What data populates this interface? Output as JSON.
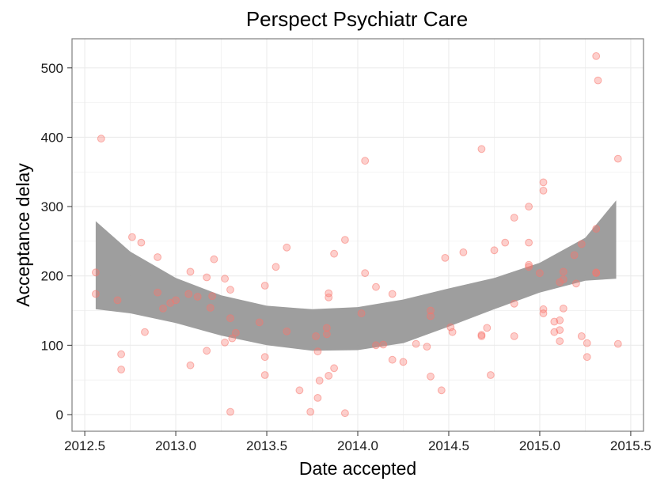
{
  "chart_data": {
    "type": "scatter",
    "title": "Perspect Psychiatr Care",
    "xlabel": "Date accepted",
    "ylabel": "Acceptance delay",
    "xlim": [
      2012.43,
      2015.57
    ],
    "ylim": [
      -24,
      542
    ],
    "x_ticks": [
      2012.5,
      2013.0,
      2013.5,
      2014.0,
      2014.5,
      2015.0,
      2015.5
    ],
    "x_tick_labels": [
      "2012.5",
      "2013.0",
      "2013.5",
      "2014.0",
      "2014.5",
      "2015.0",
      "2015.5"
    ],
    "y_ticks": [
      0,
      100,
      200,
      300,
      400,
      500
    ],
    "y_tick_labels": [
      "0",
      "100",
      "200",
      "300",
      "400",
      "500"
    ],
    "grid": true,
    "colors": {
      "points": "#f8766d",
      "band": "#999999",
      "panel_border": "#7f7f7f",
      "grid": "#ebebeb"
    },
    "points": [
      {
        "x": 2012.56,
        "y": 205
      },
      {
        "x": 2012.56,
        "y": 174
      },
      {
        "x": 2012.59,
        "y": 398
      },
      {
        "x": 2012.68,
        "y": 165
      },
      {
        "x": 2012.7,
        "y": 87
      },
      {
        "x": 2012.7,
        "y": 65
      },
      {
        "x": 2012.76,
        "y": 256
      },
      {
        "x": 2012.81,
        "y": 248
      },
      {
        "x": 2012.83,
        "y": 119
      },
      {
        "x": 2012.9,
        "y": 227
      },
      {
        "x": 2012.9,
        "y": 176
      },
      {
        "x": 2012.93,
        "y": 153
      },
      {
        "x": 2012.97,
        "y": 161
      },
      {
        "x": 2013.0,
        "y": 165
      },
      {
        "x": 2013.07,
        "y": 174
      },
      {
        "x": 2013.08,
        "y": 206
      },
      {
        "x": 2013.08,
        "y": 71
      },
      {
        "x": 2013.12,
        "y": 170
      },
      {
        "x": 2013.17,
        "y": 198
      },
      {
        "x": 2013.17,
        "y": 92
      },
      {
        "x": 2013.2,
        "y": 171
      },
      {
        "x": 2013.19,
        "y": 154
      },
      {
        "x": 2013.21,
        "y": 224
      },
      {
        "x": 2013.27,
        "y": 196
      },
      {
        "x": 2013.27,
        "y": 104
      },
      {
        "x": 2013.3,
        "y": 180
      },
      {
        "x": 2013.3,
        "y": 139
      },
      {
        "x": 2013.31,
        "y": 110
      },
      {
        "x": 2013.33,
        "y": 118
      },
      {
        "x": 2013.3,
        "y": 4
      },
      {
        "x": 2013.46,
        "y": 133
      },
      {
        "x": 2013.49,
        "y": 186
      },
      {
        "x": 2013.49,
        "y": 83
      },
      {
        "x": 2013.49,
        "y": 57
      },
      {
        "x": 2013.55,
        "y": 213
      },
      {
        "x": 2013.61,
        "y": 241
      },
      {
        "x": 2013.61,
        "y": 120
      },
      {
        "x": 2013.68,
        "y": 35
      },
      {
        "x": 2013.74,
        "y": 4
      },
      {
        "x": 2013.77,
        "y": 113
      },
      {
        "x": 2013.78,
        "y": 24
      },
      {
        "x": 2013.78,
        "y": 91
      },
      {
        "x": 2013.79,
        "y": 49
      },
      {
        "x": 2013.84,
        "y": 175
      },
      {
        "x": 2013.84,
        "y": 169
      },
      {
        "x": 2013.83,
        "y": 125
      },
      {
        "x": 2013.83,
        "y": 116
      },
      {
        "x": 2013.84,
        "y": 56
      },
      {
        "x": 2013.87,
        "y": 232
      },
      {
        "x": 2013.87,
        "y": 67
      },
      {
        "x": 2013.93,
        "y": 252
      },
      {
        "x": 2013.93,
        "y": 2
      },
      {
        "x": 2014.02,
        "y": 146
      },
      {
        "x": 2014.04,
        "y": 366
      },
      {
        "x": 2014.04,
        "y": 204
      },
      {
        "x": 2014.1,
        "y": 184
      },
      {
        "x": 2014.1,
        "y": 100
      },
      {
        "x": 2014.14,
        "y": 101
      },
      {
        "x": 2014.19,
        "y": 174
      },
      {
        "x": 2014.19,
        "y": 79
      },
      {
        "x": 2014.25,
        "y": 76
      },
      {
        "x": 2014.32,
        "y": 102
      },
      {
        "x": 2014.38,
        "y": 98
      },
      {
        "x": 2014.4,
        "y": 150
      },
      {
        "x": 2014.4,
        "y": 142
      },
      {
        "x": 2014.4,
        "y": 55
      },
      {
        "x": 2014.46,
        "y": 35
      },
      {
        "x": 2014.48,
        "y": 226
      },
      {
        "x": 2014.51,
        "y": 126
      },
      {
        "x": 2014.52,
        "y": 119
      },
      {
        "x": 2014.58,
        "y": 234
      },
      {
        "x": 2014.68,
        "y": 383
      },
      {
        "x": 2014.68,
        "y": 115
      },
      {
        "x": 2014.68,
        "y": 113
      },
      {
        "x": 2014.71,
        "y": 125
      },
      {
        "x": 2014.73,
        "y": 57
      },
      {
        "x": 2014.75,
        "y": 237
      },
      {
        "x": 2014.81,
        "y": 248
      },
      {
        "x": 2014.86,
        "y": 284
      },
      {
        "x": 2014.86,
        "y": 160
      },
      {
        "x": 2014.86,
        "y": 113
      },
      {
        "x": 2014.94,
        "y": 300
      },
      {
        "x": 2014.94,
        "y": 248
      },
      {
        "x": 2014.94,
        "y": 216
      },
      {
        "x": 2014.94,
        "y": 213
      },
      {
        "x": 2015.0,
        "y": 204
      },
      {
        "x": 2015.02,
        "y": 335
      },
      {
        "x": 2015.02,
        "y": 323
      },
      {
        "x": 2015.02,
        "y": 152
      },
      {
        "x": 2015.02,
        "y": 146
      },
      {
        "x": 2015.08,
        "y": 134
      },
      {
        "x": 2015.08,
        "y": 119
      },
      {
        "x": 2015.11,
        "y": 191
      },
      {
        "x": 2015.11,
        "y": 136
      },
      {
        "x": 2015.11,
        "y": 122
      },
      {
        "x": 2015.11,
        "y": 106
      },
      {
        "x": 2015.13,
        "y": 206
      },
      {
        "x": 2015.13,
        "y": 195
      },
      {
        "x": 2015.13,
        "y": 153
      },
      {
        "x": 2015.19,
        "y": 230
      },
      {
        "x": 2015.2,
        "y": 189
      },
      {
        "x": 2015.23,
        "y": 246
      },
      {
        "x": 2015.23,
        "y": 113
      },
      {
        "x": 2015.26,
        "y": 103
      },
      {
        "x": 2015.26,
        "y": 83
      },
      {
        "x": 2015.31,
        "y": 517
      },
      {
        "x": 2015.32,
        "y": 482
      },
      {
        "x": 2015.31,
        "y": 268
      },
      {
        "x": 2015.31,
        "y": 205
      },
      {
        "x": 2015.31,
        "y": 204
      },
      {
        "x": 2015.43,
        "y": 369
      },
      {
        "x": 2015.43,
        "y": 102
      }
    ],
    "smooth_band": {
      "x": [
        2012.56,
        2012.75,
        2013.0,
        2013.25,
        2013.5,
        2013.75,
        2014.0,
        2014.25,
        2014.5,
        2014.75,
        2015.0,
        2015.25,
        2015.42
      ],
      "upper": [
        279,
        235,
        197,
        172,
        157,
        152,
        155,
        166,
        182,
        197,
        219,
        255,
        309
      ],
      "lower": [
        152,
        146,
        132,
        114,
        100,
        92,
        93,
        103,
        127,
        152,
        176,
        193,
        196
      ]
    }
  }
}
